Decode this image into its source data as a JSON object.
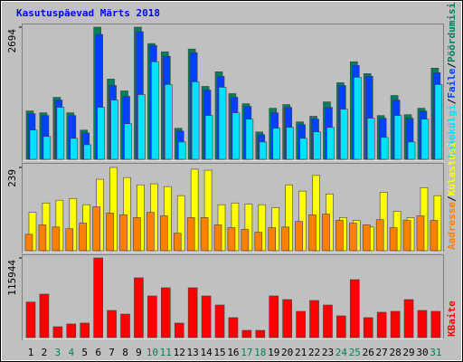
{
  "title": "Kasutuspäevad Märts 2018",
  "categories": [
    "1",
    "2",
    "3",
    "4",
    "5",
    "6",
    "7",
    "8",
    "9",
    "10",
    "11",
    "12",
    "13",
    "14",
    "15",
    "16",
    "17",
    "18",
    "19",
    "20",
    "21",
    "22",
    "23",
    "24",
    "25",
    "26",
    "27",
    "28",
    "29",
    "30",
    "31"
  ],
  "category_colors": [
    "#000000",
    "#000000",
    "#00805c",
    "#00805c",
    "#000000",
    "#000000",
    "#000000",
    "#000000",
    "#000000",
    "#00805c",
    "#00805c",
    "#000000",
    "#000000",
    "#000000",
    "#000000",
    "#000000",
    "#00805c",
    "#00805c",
    "#000000",
    "#000000",
    "#000000",
    "#000000",
    "#000000",
    "#00805c",
    "#00805c",
    "#000000",
    "#000000",
    "#000000",
    "#000000",
    "#000000",
    "#00805c"
  ],
  "legend_separator": "/",
  "chart_data": [
    {
      "type": "bar",
      "ylim": [
        0,
        2694
      ],
      "yticks": [
        2694
      ],
      "series": [
        {
          "name": "Pöördumisi",
          "color": "#00805c",
          "values": [
            985,
            948,
            1263,
            948,
            595,
            2694,
            1635,
            1394,
            2694,
            2360,
            2192,
            632,
            2248,
            1486,
            1784,
            1338,
            1133,
            557,
            1041,
            1115,
            762,
            876,
            1171,
            1561,
            1988,
            1747,
            892,
            1301,
            910,
            1041,
            1858
          ]
        },
        {
          "name": "Faile",
          "color": "#0040ff",
          "values": [
            930,
            892,
            1208,
            892,
            539,
            2546,
            1505,
            1282,
            2601,
            2323,
            2100,
            576,
            2174,
            1412,
            1691,
            1263,
            1078,
            502,
            948,
            1059,
            706,
            820,
            1059,
            1505,
            1914,
            1691,
            836,
            1208,
            836,
            985,
            1765
          ]
        },
        {
          "name": "Lehekülgi",
          "color": "#00e0ff",
          "values": [
            595,
            465,
            1059,
            427,
            297,
            1059,
            1208,
            725,
            1319,
            1988,
            1524,
            353,
            1579,
            892,
            1468,
            948,
            818,
            353,
            632,
            650,
            427,
            560,
            650,
            1022,
            1672,
            836,
            446,
            892,
            353,
            818,
            1524
          ]
        }
      ]
    },
    {
      "type": "bar",
      "ylim": [
        0,
        239
      ],
      "yticks": [
        239
      ],
      "series": [
        {
          "name": "Külastusi",
          "color": "#ffff00",
          "values": [
            110,
            137,
            145,
            150,
            132,
            205,
            239,
            210,
            189,
            192,
            184,
            158,
            234,
            231,
            132,
            137,
            134,
            132,
            124,
            189,
            171,
            216,
            163,
            95,
            87,
            68,
            168,
            113,
            95,
            181,
            158
          ]
        },
        {
          "name": "Aadresse",
          "color": "#ff8000",
          "values": [
            47,
            74,
            68,
            63,
            79,
            126,
            108,
            103,
            95,
            110,
            100,
            50,
            95,
            95,
            74,
            66,
            61,
            53,
            66,
            68,
            84,
            103,
            105,
            87,
            79,
            74,
            89,
            66,
            87,
            100,
            87
          ]
        }
      ]
    },
    {
      "type": "bar",
      "ylim": [
        0,
        115944
      ],
      "yticks": [
        115944
      ],
      "series": [
        {
          "name": "KBaite",
          "color": "#ff0000",
          "values": [
            51700,
            63200,
            15800,
            19800,
            21100,
            115944,
            39500,
            34200,
            87000,
            60600,
            72500,
            21100,
            72500,
            60600,
            47400,
            29000,
            10500,
            10500,
            60600,
            55300,
            38200,
            54000,
            47400,
            31600,
            84300,
            29000,
            36900,
            38200,
            55300,
            39500,
            38200
          ]
        }
      ]
    }
  ]
}
